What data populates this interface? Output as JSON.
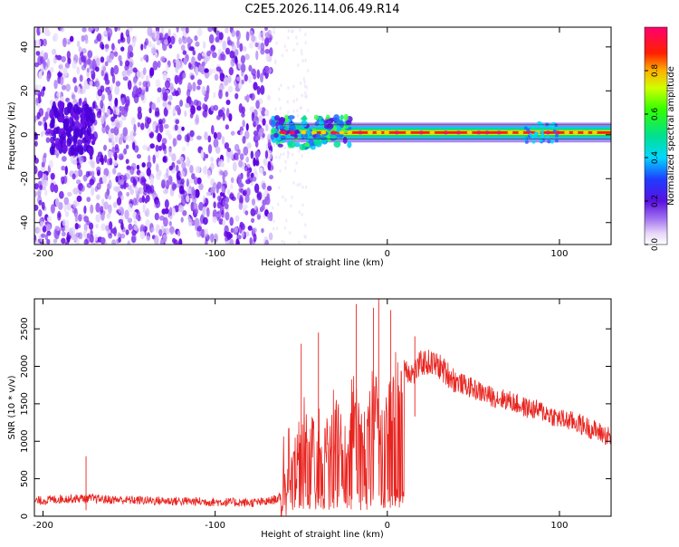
{
  "title": "C2E5.2026.114.06.49.R14",
  "chart_data": [
    {
      "type": "heatmap",
      "xlabel": "Height of straight line (km)",
      "ylabel": "Frequency (Hz)",
      "xlim": [
        -205,
        130
      ],
      "ylim": [
        -50,
        49
      ],
      "xticks": [
        -200,
        -100,
        0,
        100
      ],
      "yticks": [
        -40,
        -20,
        0,
        20,
        40
      ],
      "xtick_labels": [
        "-200",
        "-100",
        "0",
        "100"
      ],
      "ytick_labels": [
        "-40",
        "-20",
        "0",
        "20",
        "40"
      ],
      "noise_region_x": [
        -205,
        -67
      ],
      "signal_region_x": [
        -67,
        130
      ],
      "signal_center_frequency": 1,
      "colorbar": {
        "label": "Normalized spectral amplitude",
        "range": [
          0,
          1
        ],
        "ticks": [
          0.0,
          0.2,
          0.4,
          0.6,
          0.8
        ],
        "tick_labels": [
          "0.0",
          "0.2",
          "0.4",
          "0.6",
          "0.8"
        ],
        "colormap": "rainbow (white-violet-blue-cyan-green-yellow-red-magenta)"
      },
      "grid": false
    },
    {
      "type": "line",
      "xlabel": "Height of straight line (km)",
      "ylabel": "SNR (10 * v/v)",
      "xlim": [
        -205,
        130
      ],
      "ylim": [
        0,
        2900
      ],
      "xticks": [
        -200,
        -100,
        0,
        100
      ],
      "yticks": [
        0,
        500,
        1000,
        1500,
        2000,
        2500
      ],
      "xtick_labels": [
        "-200",
        "-100",
        "0",
        "100"
      ],
      "ytick_labels": [
        "0",
        "500",
        "1000",
        "1500",
        "2000",
        "2500"
      ],
      "series_color": "#e8241f",
      "series": [
        {
          "x": [
            -205,
            -190,
            -175,
            -160,
            -140,
            -120,
            -100,
            -80,
            -70,
            -62,
            -55,
            -50,
            -45,
            -40,
            -35,
            -30,
            -25,
            -20,
            -15,
            -10,
            -5,
            0,
            5,
            10,
            15,
            20,
            25,
            30,
            35,
            40,
            50,
            60,
            70,
            80,
            90,
            100,
            110,
            120,
            130
          ],
          "values": [
            200,
            230,
            240,
            220,
            210,
            200,
            190,
            180,
            190,
            250,
            700,
            1000,
            900,
            1100,
            800,
            1250,
            900,
            1350,
            1000,
            1250,
            1300,
            1350,
            1700,
            2000,
            1900,
            2050,
            2050,
            2000,
            1900,
            1800,
            1700,
            1600,
            1550,
            1450,
            1400,
            1300,
            1250,
            1150,
            1050
          ],
          "spikes": [
            {
              "x": -175,
              "y": 800
            },
            {
              "x": -50,
              "y": 2300
            },
            {
              "x": -40,
              "y": 2450
            },
            {
              "x": -18,
              "y": 2830
            },
            {
              "x": -8,
              "y": 2780
            },
            {
              "x": -5,
              "y": 2900
            },
            {
              "x": 2,
              "y": 2750
            },
            {
              "x": 16,
              "y": 2400
            }
          ]
        }
      ],
      "grid": false
    }
  ]
}
